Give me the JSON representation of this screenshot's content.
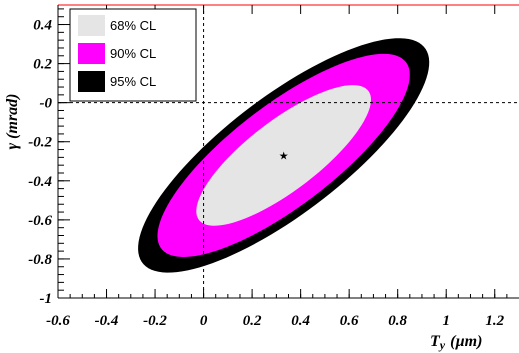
{
  "chart_data": {
    "type": "contour",
    "xlabel": "T_y (µm)",
    "xlabel_main": "T",
    "xlabel_sub": "y",
    "xlabel_unit": "(µm)",
    "ylabel": "γ (mrad)",
    "xlim": [
      -0.6,
      1.3
    ],
    "ylim": [
      -1.0,
      0.5
    ],
    "x_ticks": [
      -0.6,
      -0.4,
      -0.2,
      0,
      0.2,
      0.4,
      0.6,
      0.8,
      1,
      1.2
    ],
    "x_tick_labels": [
      "-0.6",
      "-0.4",
      "-0.2",
      "0",
      "0.2",
      "0.4",
      "0.6",
      "0.8",
      "1",
      "1.2"
    ],
    "y_ticks": [
      -1.0,
      -0.8,
      -0.6,
      -0.4,
      -0.2,
      0,
      0.2,
      0.4
    ],
    "y_tick_labels": [
      "-1",
      "-0.8",
      "-0.6",
      "-0.4",
      "-0.2",
      "-0",
      "0.2",
      "0.4"
    ],
    "grid": false,
    "reference_lines": {
      "x": 0,
      "y": 0
    },
    "legend_position": "top-left",
    "best_fit": {
      "x": 0.33,
      "y": -0.27,
      "marker": "★"
    },
    "contours": [
      {
        "name": "95% CL",
        "color": "#000000",
        "x_range": [
          -0.27,
          0.93
        ],
        "y_range": [
          -0.87,
          0.33
        ]
      },
      {
        "name": "90% CL",
        "color": "#ff00ff",
        "x_range": [
          -0.19,
          0.85
        ],
        "y_range": [
          -0.79,
          0.25
        ]
      },
      {
        "name": "68% CL",
        "color": "#e5e5e5",
        "x_range": [
          -0.03,
          0.69
        ],
        "y_range": [
          -0.63,
          0.09
        ]
      }
    ],
    "ellipse_orientation_deg": 45,
    "ellipse_axis_ratio": 0.34
  }
}
